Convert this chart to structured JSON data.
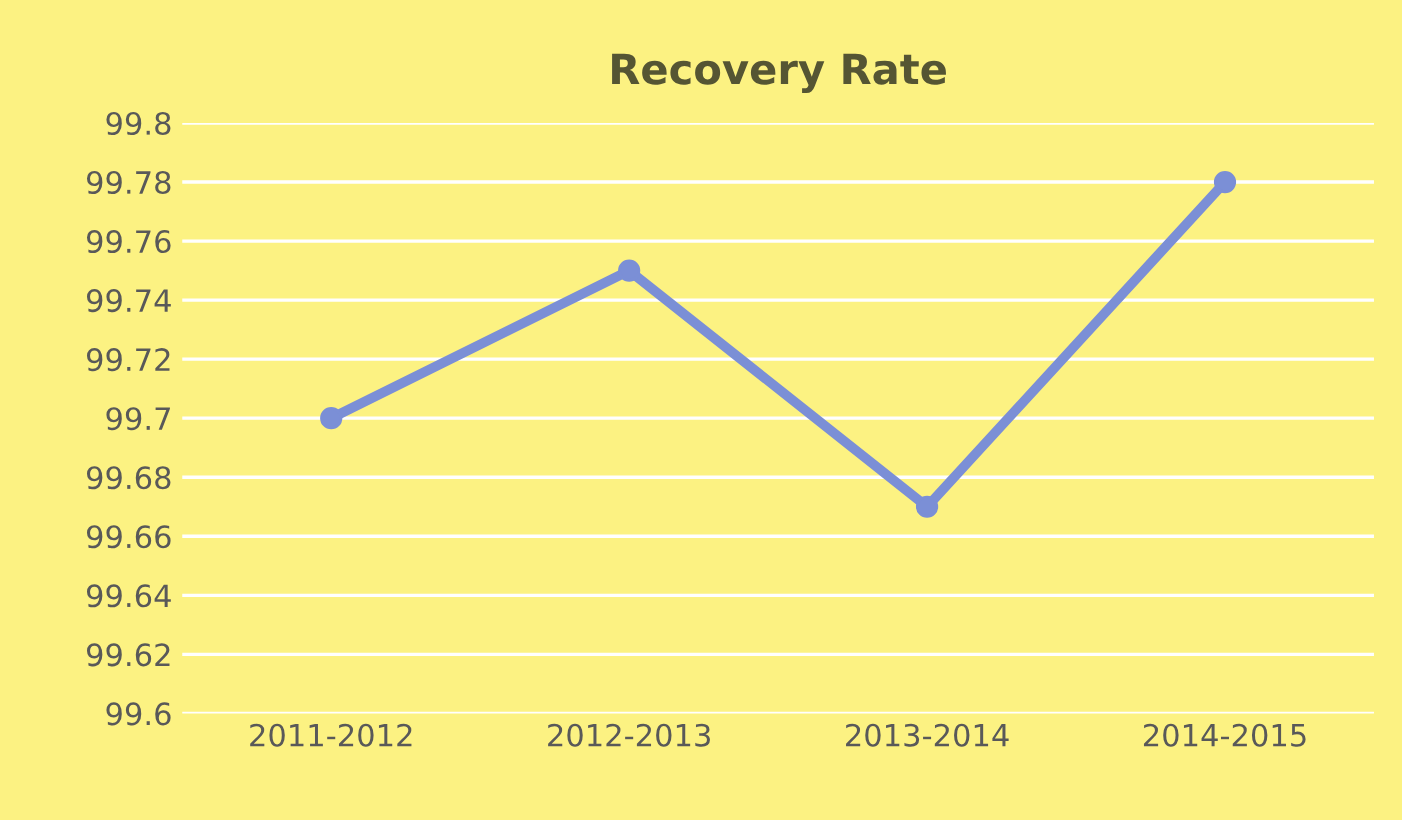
{
  "chart_data": {
    "type": "line",
    "title": "Recovery Rate",
    "categories": [
      "2011-2012",
      "2012-2013",
      "2013-2014",
      "2014-2015"
    ],
    "series": [
      {
        "color": "#7b8fd6",
        "values": [
          99.7,
          99.75,
          99.67,
          99.78
        ]
      }
    ],
    "ylim": [
      99.6,
      99.8
    ],
    "yticks": [
      {
        "value": 99.6,
        "label": "99.6"
      },
      {
        "value": 99.62,
        "label": "99.62"
      },
      {
        "value": 99.64,
        "label": "99.64"
      },
      {
        "value": 99.66,
        "label": "99.66"
      },
      {
        "value": 99.68,
        "label": "99.68"
      },
      {
        "value": 99.7,
        "label": "99.7"
      },
      {
        "value": 99.72,
        "label": "99.72"
      },
      {
        "value": 99.74,
        "label": "99.74"
      },
      {
        "value": 99.76,
        "label": "99.76"
      },
      {
        "value": 99.78,
        "label": "99.78"
      },
      {
        "value": 99.8,
        "label": "99.8"
      }
    ],
    "grid": "y",
    "marker": "circle",
    "line_style": "solid"
  }
}
